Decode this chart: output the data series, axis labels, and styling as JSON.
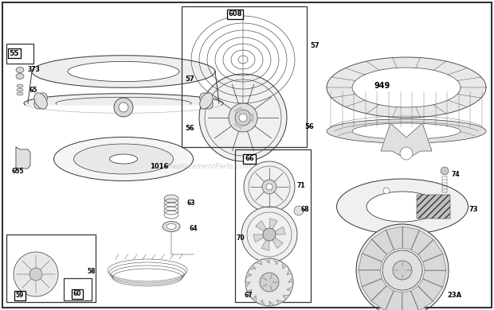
{
  "background_color": "#ffffff",
  "watermark": "eReplacementParts.com",
  "line_color": "#333333",
  "fill_light": "#f0f0f0",
  "fill_mid": "#e0e0e0",
  "fill_dark": "#c8c8c8"
}
